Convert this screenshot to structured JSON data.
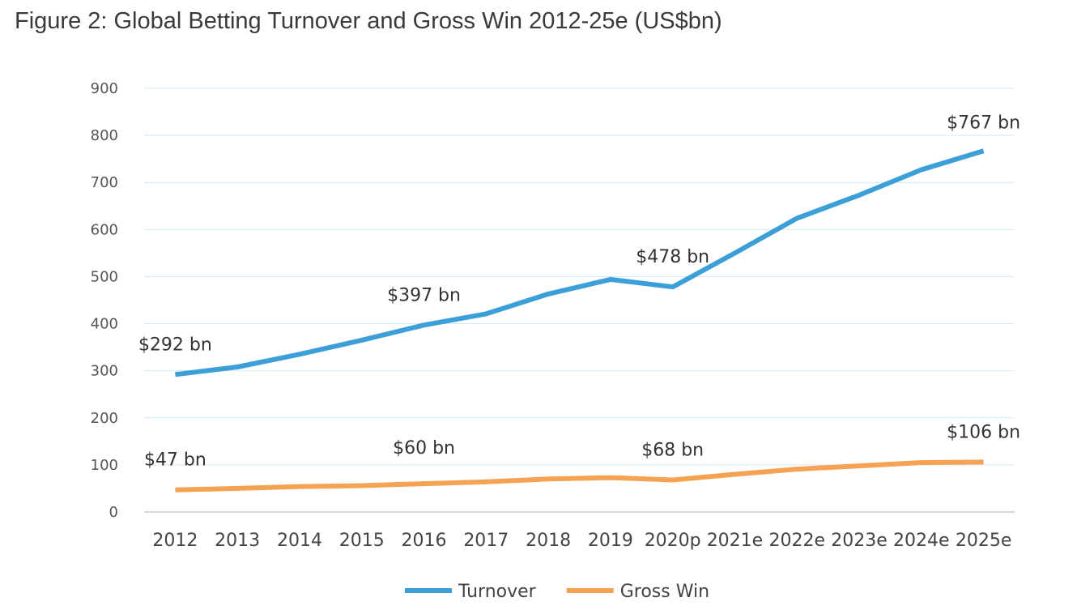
{
  "title": "Figure 2: Global Betting Turnover and Gross Win 2012-25e (US$bn)",
  "chart_data": {
    "type": "line",
    "title": "Figure 2: Global Betting Turnover and Gross Win 2012-25e (US$bn)",
    "xlabel": "",
    "ylabel": "",
    "categories": [
      "2012",
      "2013",
      "2014",
      "2015",
      "2016",
      "2017",
      "2018",
      "2019",
      "2020p",
      "2021e",
      "2022e",
      "2023e",
      "2024e",
      "2025e"
    ],
    "ylim": [
      0,
      900
    ],
    "yticks": [
      0,
      100,
      200,
      300,
      400,
      500,
      600,
      700,
      800,
      900
    ],
    "grid": true,
    "legend_position": "bottom",
    "series": [
      {
        "name": "Turnover",
        "color": "#3d9fd8",
        "values": [
          292,
          308,
          335,
          365,
          397,
          421,
          463,
          494,
          478,
          550,
          624,
          673,
          727,
          767
        ]
      },
      {
        "name": "Gross Win",
        "color": "#f5a352",
        "values": [
          47,
          50,
          54,
          56,
          60,
          64,
          70,
          73,
          68,
          80,
          91,
          98,
          105,
          106
        ]
      }
    ],
    "annotations": [
      {
        "series": 0,
        "index": 0,
        "text": "$292 bn"
      },
      {
        "series": 0,
        "index": 4,
        "text": "$397 bn"
      },
      {
        "series": 0,
        "index": 8,
        "text": "$478 bn"
      },
      {
        "series": 0,
        "index": 13,
        "text": "$767 bn"
      },
      {
        "series": 1,
        "index": 0,
        "text": "$47 bn"
      },
      {
        "series": 1,
        "index": 4,
        "text": "$60 bn"
      },
      {
        "series": 1,
        "index": 8,
        "text": "$68 bn"
      },
      {
        "series": 1,
        "index": 13,
        "text": "$106 bn"
      }
    ]
  }
}
